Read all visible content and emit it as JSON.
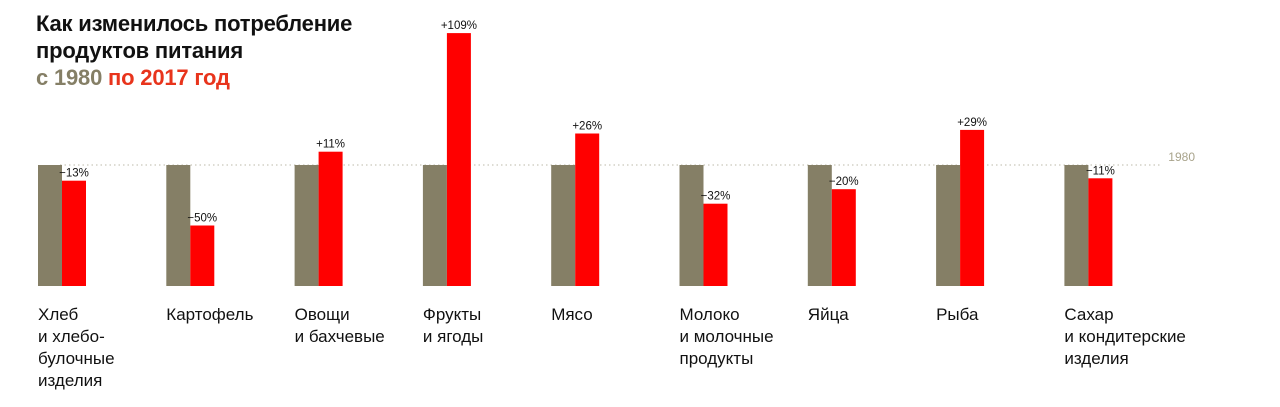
{
  "title": {
    "line1": "Как изменилось потребление",
    "line2": "продуктов питания",
    "prefix": "с",
    "year_start": "1980",
    "middle": "по",
    "year_end": "2017 год"
  },
  "colors": {
    "base_bar": "#857F66",
    "change_bar": "#FF0000",
    "reference_line": "#BDBAA9",
    "reference_label": "#A8A38B",
    "year_start": "#857F66",
    "year_end": "#E8341C",
    "text": "#111111"
  },
  "chart_data": {
    "type": "bar",
    "title": "Как изменилось потребление продуктов питания с 1980 по 2017 год",
    "xlabel": "",
    "ylabel": "",
    "reference_label": "1980",
    "baseline_value": 100,
    "ylim": [
      0,
      220
    ],
    "grid": false,
    "categories": [
      [
        "Хлеб",
        "и хлебо-",
        "булочные",
        "изделия"
      ],
      [
        "Картофель"
      ],
      [
        "Овощи",
        "и бахчевые"
      ],
      [
        "Фрукты",
        "и ягоды"
      ],
      [
        "Мясо"
      ],
      [
        "Молоко",
        "и молочные",
        "продукты"
      ],
      [
        "Яйца"
      ],
      [
        "Рыба"
      ],
      [
        "Сахар",
        "и кондитерские",
        "изделия"
      ]
    ],
    "series": [
      {
        "name": "1980",
        "values": [
          100,
          100,
          100,
          100,
          100,
          100,
          100,
          100,
          100
        ]
      },
      {
        "name": "2017",
        "values": [
          87,
          50,
          111,
          209,
          126,
          68,
          80,
          129,
          89
        ]
      }
    ],
    "data_labels": [
      "−13%",
      "−50%",
      "+11%",
      "+109%",
      "+26%",
      "−32%",
      "−20%",
      "+29%",
      "−11%"
    ]
  }
}
